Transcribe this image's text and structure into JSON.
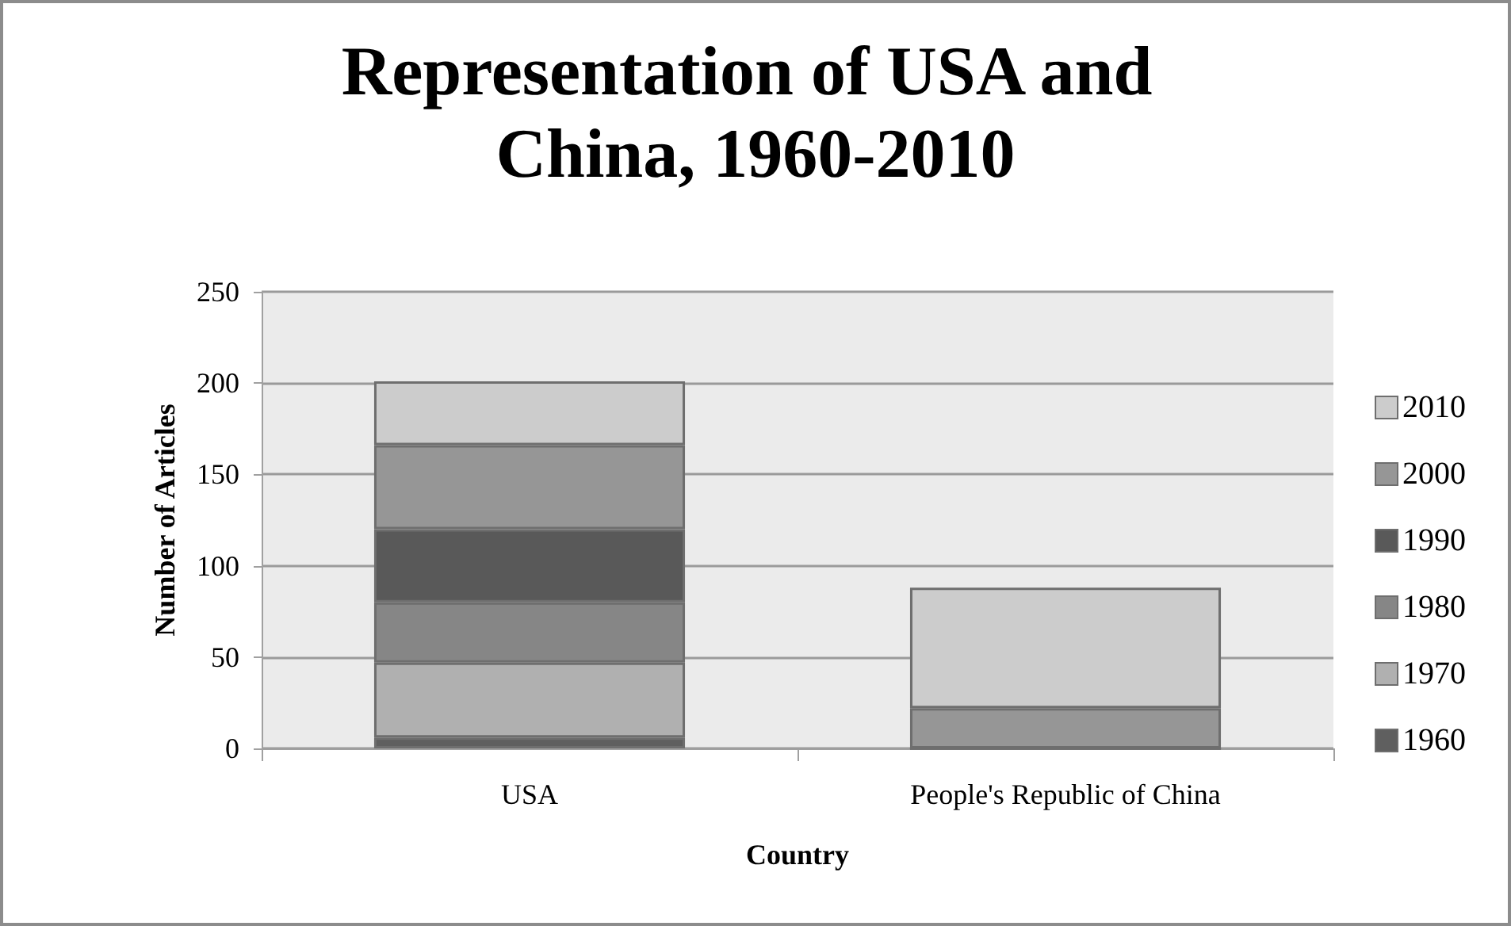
{
  "chart_data": {
    "type": "bar",
    "title": "Representation of USA and China, 1960-2010",
    "xlabel": "Country",
    "ylabel": "Number of Articles",
    "categories": [
      "USA",
      "People's Republic of China"
    ],
    "stacked": true,
    "series": [
      {
        "name": "1960",
        "color": "#5f5f5f",
        "values": [
          6,
          0
        ]
      },
      {
        "name": "1970",
        "color": "#b0b0b0",
        "values": [
          41,
          0
        ]
      },
      {
        "name": "1980",
        "color": "#868686",
        "values": [
          33,
          0
        ]
      },
      {
        "name": "1990",
        "color": "#595959",
        "values": [
          40,
          0
        ]
      },
      {
        "name": "2000",
        "color": "#969696",
        "values": [
          46,
          22
        ]
      },
      {
        "name": "2010",
        "color": "#cccccc",
        "values": [
          35,
          66
        ]
      }
    ],
    "ylim": [
      0,
      250
    ],
    "yticks": [
      0,
      50,
      100,
      150,
      200,
      250
    ],
    "grid": "y",
    "legend": "right"
  }
}
